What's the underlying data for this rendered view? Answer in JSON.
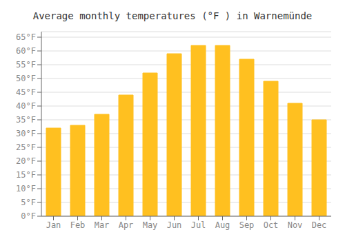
{
  "chart_data": {
    "type": "bar",
    "title": "Average monthly temperatures (°F ) in Warnemünde",
    "categories": [
      "Jan",
      "Feb",
      "Mar",
      "Apr",
      "May",
      "Jun",
      "Jul",
      "Aug",
      "Sep",
      "Oct",
      "Nov",
      "Dec"
    ],
    "values": [
      32,
      33,
      37,
      44,
      52,
      59,
      62,
      62,
      57,
      49,
      41,
      35
    ],
    "color": "#FFC020",
    "ylim": [
      0,
      67
    ],
    "yticks": [
      {
        "value": 0,
        "label": "0°F"
      },
      {
        "value": 5,
        "label": "5°F"
      },
      {
        "value": 10,
        "label": "10°F"
      },
      {
        "value": 15,
        "label": "15°F"
      },
      {
        "value": 20,
        "label": "20°F"
      },
      {
        "value": 25,
        "label": "25°F"
      },
      {
        "value": 30,
        "label": "30°F"
      },
      {
        "value": 35,
        "label": "35°F"
      },
      {
        "value": 40,
        "label": "40°F"
      },
      {
        "value": 45,
        "label": "45°F"
      },
      {
        "value": 50,
        "label": "50°F"
      },
      {
        "value": 55,
        "label": "55°F"
      },
      {
        "value": 60,
        "label": "60°F"
      },
      {
        "value": 65,
        "label": "65°F"
      }
    ],
    "grid": true
  }
}
